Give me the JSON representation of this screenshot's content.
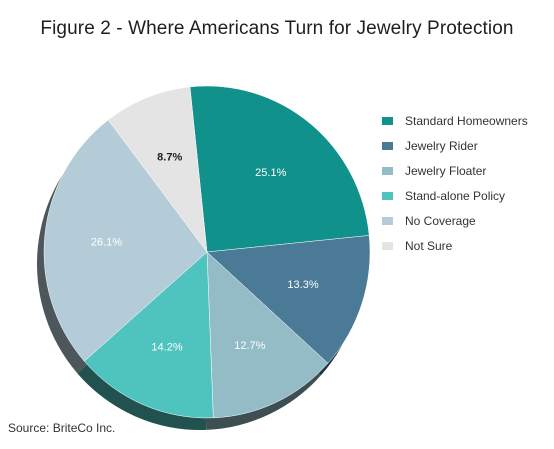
{
  "source": "Source: BriteCo Inc.",
  "chart_data": {
    "type": "pie",
    "title": "Figure 2 - Where Americans Turn for Jewelry Protection",
    "legend_position": "right",
    "slices": [
      {
        "name": "Standard Homeowners",
        "value": 25.1,
        "label": "25.1%",
        "color": "#10918c"
      },
      {
        "name": "Jewelry Rider",
        "value": 13.3,
        "label": "13.3%",
        "color": "#4a7a96"
      },
      {
        "name": "Jewelry Floater",
        "value": 12.7,
        "label": "12.7%",
        "color": "#93bcc7"
      },
      {
        "name": "Stand-alone Policy",
        "value": 14.2,
        "label": "14.2%",
        "color": "#4fc4bf"
      },
      {
        "name": "No Coverage",
        "value": 26.1,
        "label": "26.1%",
        "color": "#b4ccd8"
      },
      {
        "name": "Not Sure",
        "value": 8.7,
        "label": "8.7%",
        "color": "#e4e4e4"
      }
    ]
  }
}
